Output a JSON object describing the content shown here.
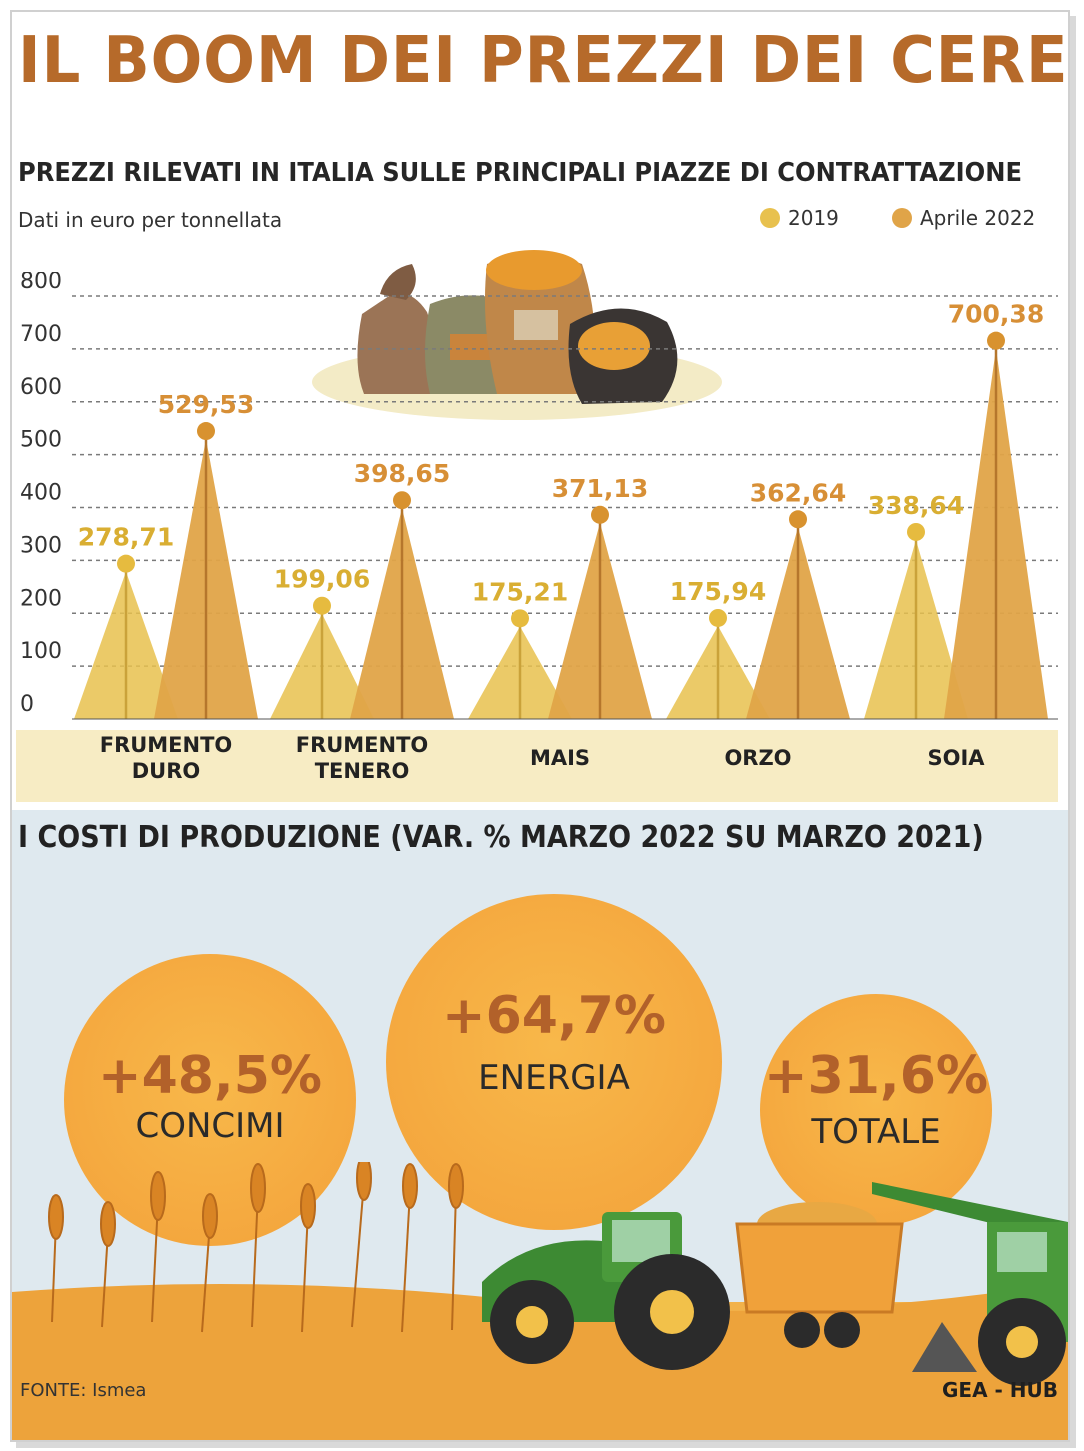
{
  "title": "IL BOOM DEI PREZZI DEI CEREALI",
  "chart_data": {
    "type": "bar",
    "title": "PREZZI RILEVATI IN ITALIA SULLE PRINCIPALI PIAZZE DI CONTRATTAZIONE",
    "subtitle": "Dati in euro per tonnellata",
    "categories": [
      "FRUMENTO DURO",
      "FRUMENTO TENERO",
      "MAIS",
      "ORZO",
      "SOIA"
    ],
    "category_lines": [
      [
        "FRUMENTO",
        "DURO"
      ],
      [
        "FRUMENTO",
        "TENERO"
      ],
      [
        "MAIS"
      ],
      [
        "ORZO"
      ],
      [
        "SOIA"
      ]
    ],
    "series": [
      {
        "name": "2019",
        "values": [
          278.71,
          199.06,
          175.21,
          175.94,
          338.64
        ],
        "labels": [
          "278,71",
          "199,06",
          "175,21",
          "175,94",
          "338,64"
        ],
        "color": "#e8c14e"
      },
      {
        "name": "Aprile 2022",
        "values": [
          529.53,
          398.65,
          371.13,
          362.64,
          700.38
        ],
        "labels": [
          "529,53",
          "398,65",
          "371,13",
          "362,64",
          "700,38"
        ],
        "color": "#e0a448"
      }
    ],
    "ylim": [
      0,
      800
    ],
    "yticks": [
      "0",
      "100",
      "200",
      "300",
      "400",
      "500",
      "600",
      "700",
      "800"
    ],
    "grid": true,
    "legend_position": "top-right"
  },
  "costs": {
    "title": "I COSTI DI PRODUZIONE (VAR. % MARZO 2022 SU MARZO 2021)",
    "items": [
      {
        "value": "+48,5%",
        "label": "CONCIMI"
      },
      {
        "value": "+64,7%",
        "label": "ENERGIA"
      },
      {
        "value": "+31,6%",
        "label": "TOTALE"
      }
    ]
  },
  "footer": {
    "source": "FONTE: Ismea",
    "brand": "GEA - HUB"
  },
  "colors": {
    "title": "#b66a2a",
    "bar_2019": "#e8c14e",
    "bar_2022": "#e0a448",
    "label_2022": "#d78f36",
    "bubble": "#f5a93f"
  },
  "icons": [
    "grain-sacks-icon",
    "wheat-field-icon",
    "tractor-icon",
    "trailer-icon",
    "combine-harvester-icon"
  ]
}
